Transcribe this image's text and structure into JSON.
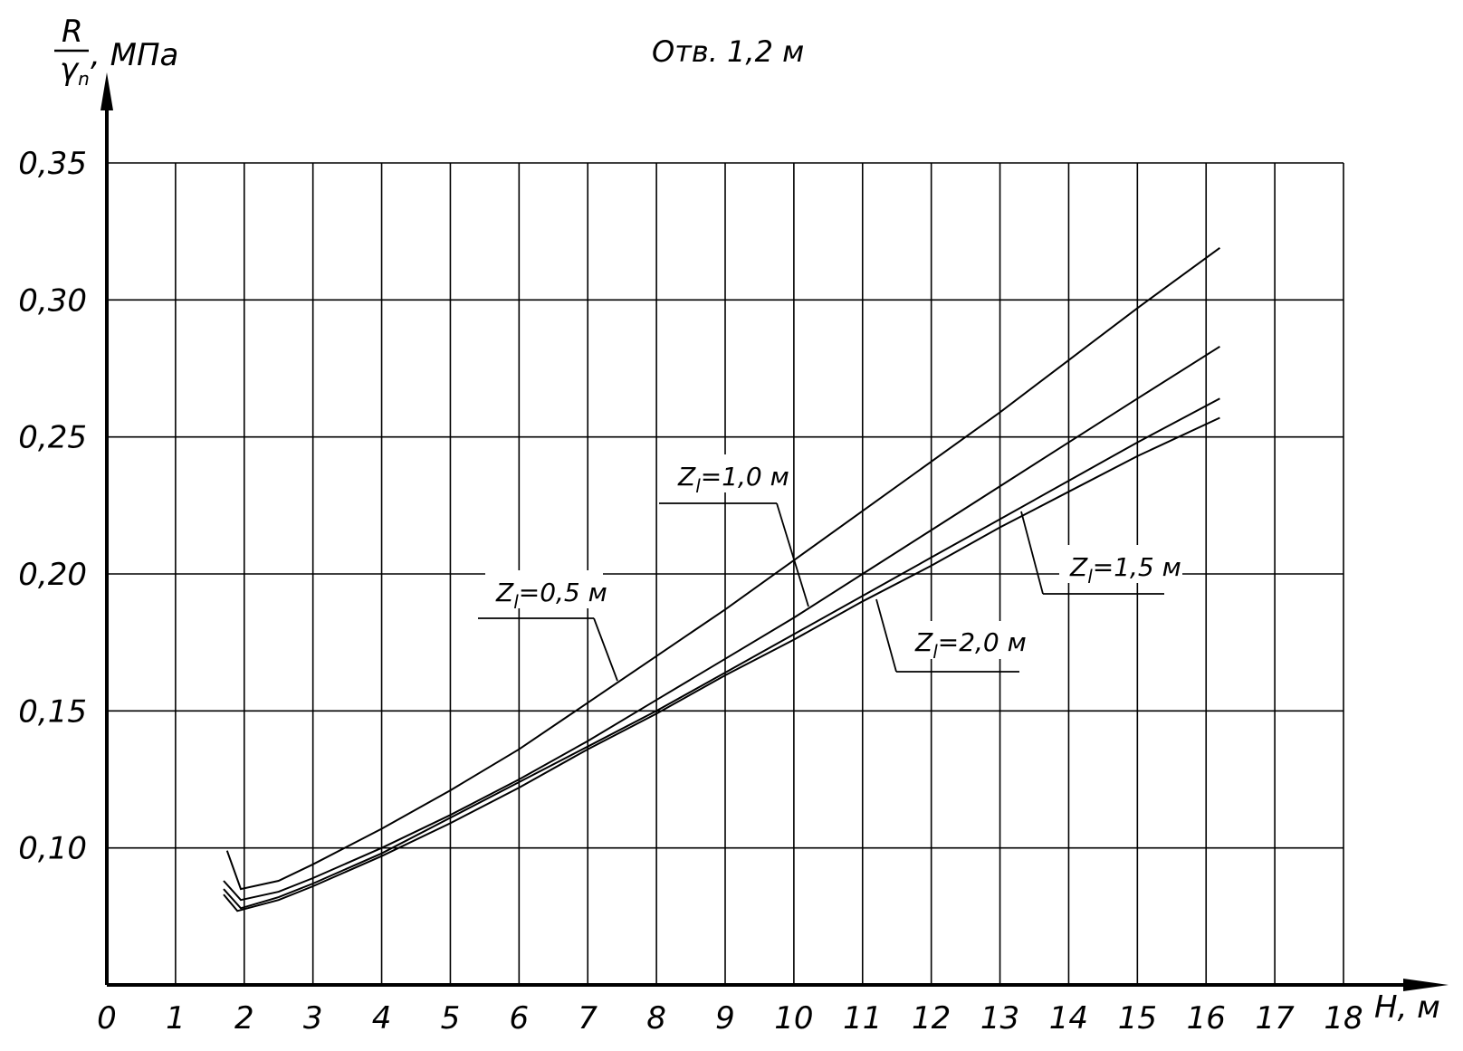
{
  "chart_data": {
    "type": "line",
    "title": "Отв. 1,2 м",
    "xlabel": "H, м",
    "ylabel": {
      "numerator": "R",
      "denominator": "γ",
      "denominator_sub": "n",
      "unit": ", МПа"
    },
    "xlim": [
      0,
      18
    ],
    "ylim": [
      0.05,
      0.35
    ],
    "x_ticks": [
      0,
      1,
      2,
      3,
      4,
      5,
      6,
      7,
      8,
      9,
      10,
      11,
      12,
      13,
      14,
      15,
      16,
      17,
      18
    ],
    "x_tick_labels": [
      "0",
      "1",
      "2",
      "3",
      "4",
      "5",
      "6",
      "7",
      "8",
      "9",
      "10",
      "11",
      "12",
      "13",
      "14",
      "15",
      "16",
      "17",
      "18"
    ],
    "y_ticks": [
      0.1,
      0.15,
      0.2,
      0.25,
      0.3,
      0.35
    ],
    "y_tick_labels": [
      "0,10",
      "0,15",
      "0,20",
      "0,25",
      "0,30",
      "0,35"
    ],
    "grid": true,
    "series": [
      {
        "id": "z05",
        "label_base": "Z",
        "label_sub": "l",
        "label_value": "=0,5 м",
        "x": [
          1.75,
          1.95,
          2.5,
          3,
          4,
          5,
          6,
          7,
          8,
          9,
          10,
          11,
          12,
          13,
          14,
          15,
          16.2
        ],
        "y": [
          0.099,
          0.085,
          0.088,
          0.094,
          0.107,
          0.121,
          0.136,
          0.153,
          0.17,
          0.187,
          0.205,
          0.223,
          0.241,
          0.259,
          0.278,
          0.297,
          0.319
        ]
      },
      {
        "id": "z10",
        "label_base": "Z",
        "label_sub": "l",
        "label_value": "=1,0 м",
        "x": [
          1.7,
          1.95,
          2.5,
          3,
          4,
          5,
          6,
          7,
          8,
          9,
          10,
          11,
          12,
          13,
          14,
          15,
          16.2
        ],
        "y": [
          0.088,
          0.081,
          0.084,
          0.089,
          0.1,
          0.112,
          0.125,
          0.139,
          0.154,
          0.169,
          0.184,
          0.2,
          0.216,
          0.232,
          0.248,
          0.264,
          0.283
        ]
      },
      {
        "id": "z15",
        "label_base": "Z",
        "label_sub": "l",
        "label_value": "=1,5 м",
        "x": [
          1.7,
          1.95,
          2.5,
          3,
          4,
          5,
          6,
          7,
          8,
          9,
          10,
          11,
          12,
          13,
          14,
          15,
          16.2
        ],
        "y": [
          0.085,
          0.078,
          0.082,
          0.087,
          0.098,
          0.111,
          0.124,
          0.137,
          0.15,
          0.164,
          0.178,
          0.192,
          0.206,
          0.22,
          0.234,
          0.248,
          0.264
        ]
      },
      {
        "id": "z20",
        "label_base": "Z",
        "label_sub": "l",
        "label_value": "=2,0 м",
        "x": [
          1.7,
          1.9,
          2.5,
          3,
          4,
          5,
          6,
          7,
          8,
          9,
          10,
          11,
          12,
          13,
          14,
          15,
          16.2
        ],
        "y": [
          0.083,
          0.077,
          0.081,
          0.086,
          0.097,
          0.109,
          0.122,
          0.136,
          0.149,
          0.163,
          0.176,
          0.19,
          0.203,
          0.217,
          0.23,
          0.243,
          0.257
        ]
      }
    ]
  }
}
